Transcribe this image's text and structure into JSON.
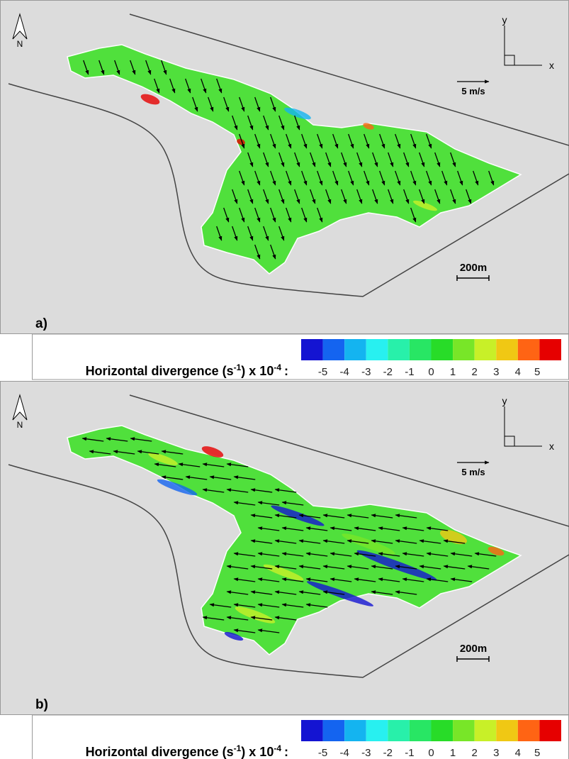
{
  "panels": [
    {
      "label": "a)",
      "north": "N",
      "axis_y": "y",
      "axis_x": "x",
      "velocity_scale": "5 m/s",
      "distance_scale": "200m",
      "legend": {
        "title": [
          "Horizontal divergence (s",
          "-1",
          ") x 10",
          "-4",
          ":"
        ],
        "ticks": [
          -5,
          -4,
          -3,
          -2,
          -1,
          0,
          1,
          2,
          3,
          4,
          5
        ],
        "colors": [
          "#1414d2",
          "#1464f0",
          "#14b4f0",
          "#28f0f0",
          "#28f0aa",
          "#28e664",
          "#28dc28",
          "#78e628",
          "#c8f028",
          "#f0c814",
          "#ff6414",
          "#e60000"
        ]
      }
    },
    {
      "label": "b)",
      "north": "N",
      "axis_y": "y",
      "axis_x": "x",
      "velocity_scale": "5 m/s",
      "distance_scale": "200m",
      "legend": {
        "title": [
          "Horizontal divergence (s",
          "-1",
          ") x 10",
          "-4",
          ":"
        ],
        "ticks": [
          -5,
          -4,
          -3,
          -2,
          -1,
          0,
          1,
          2,
          3,
          4,
          5
        ],
        "colors": [
          "#1414d2",
          "#1464f0",
          "#14b4f0",
          "#28f0f0",
          "#28f0aa",
          "#28e664",
          "#28dc28",
          "#78e628",
          "#c8f028",
          "#f0c814",
          "#ff6414",
          "#e60000"
        ]
      }
    }
  ]
}
